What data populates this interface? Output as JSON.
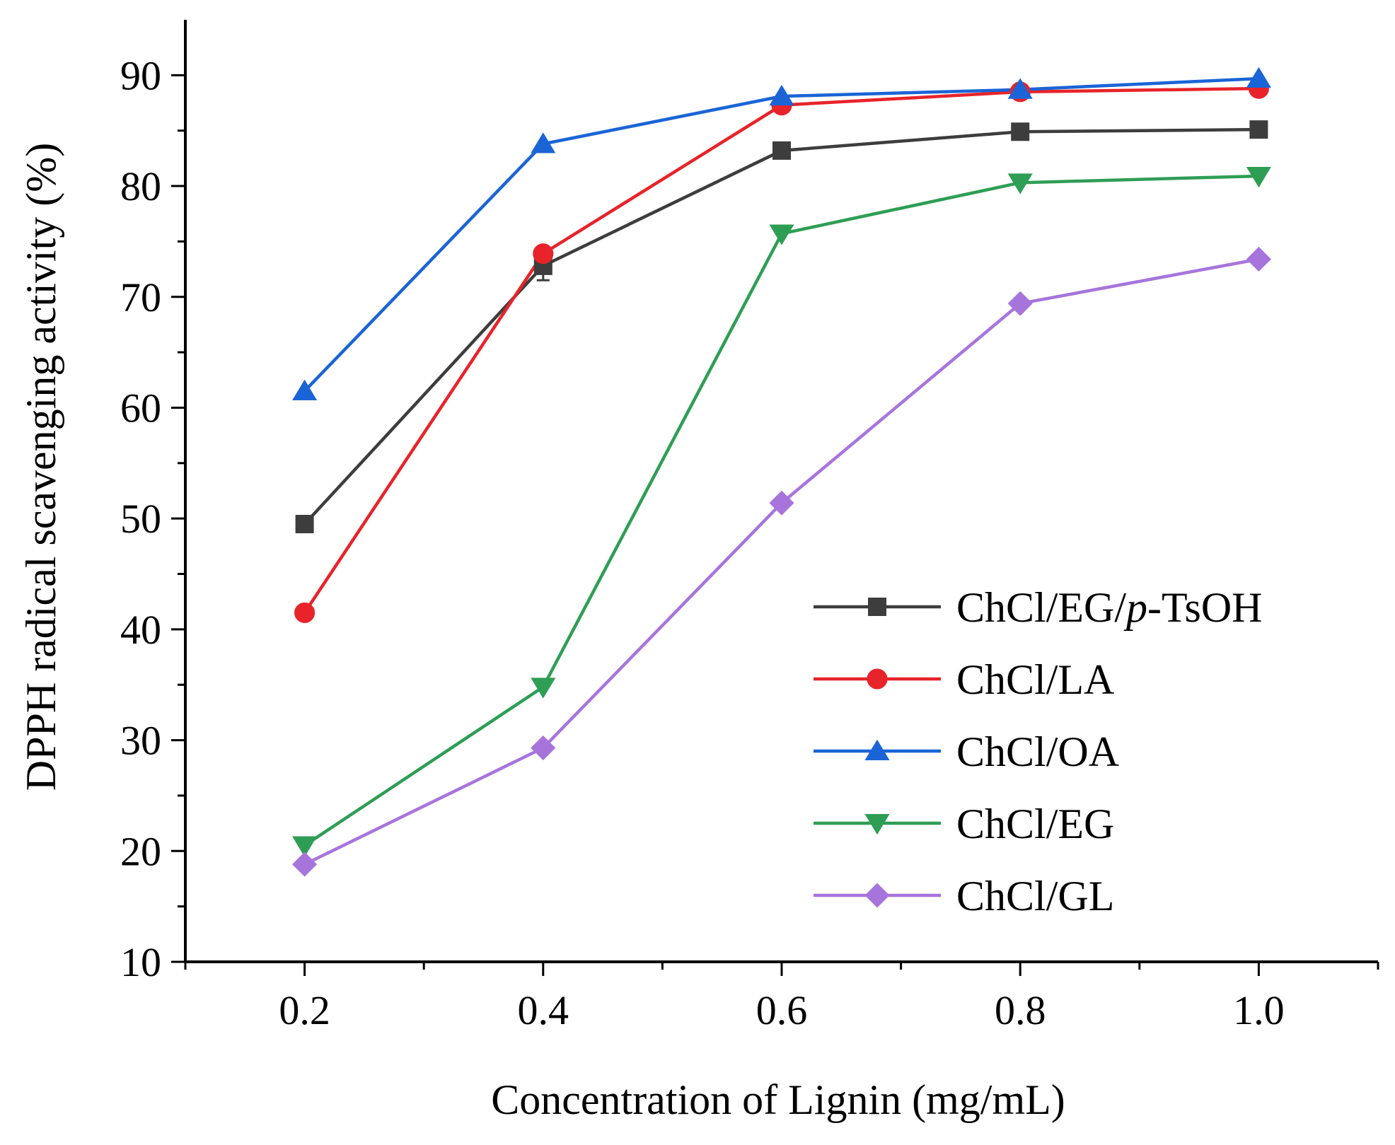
{
  "chart_data": {
    "type": "line",
    "title": "",
    "xlabel": "Concentration of Lignin (mg/mL)",
    "ylabel": "DPPH radical scavenging activity (%)",
    "x": [
      0.2,
      0.4,
      0.6,
      0.8,
      1.0
    ],
    "xlim": [
      0.1,
      1.1
    ],
    "ylim": [
      10,
      95
    ],
    "x_ticks": [
      "0.2",
      "0.4",
      "0.6",
      "0.8",
      "1.0"
    ],
    "y_ticks": [
      "10",
      "20",
      "30",
      "40",
      "50",
      "60",
      "70",
      "80",
      "90"
    ],
    "grid": false,
    "legend_position": "bottom-right",
    "series": [
      {
        "name": "ChCl/EG/p-TsOH",
        "name_prefix": "ChCl/EG/",
        "name_italic": "p",
        "name_suffix": "-TsOH",
        "marker": "square",
        "color": "#3d3d3d",
        "values": [
          49.5,
          72.8,
          83.2,
          84.9,
          85.1
        ],
        "error": [
          0.6,
          1.3,
          0.5,
          0.4,
          0.4
        ]
      },
      {
        "name": "ChCl/LA",
        "marker": "circle",
        "color": "#e8232a",
        "values": [
          41.5,
          73.9,
          87.3,
          88.5,
          88.8
        ]
      },
      {
        "name": "ChCl/OA",
        "marker": "triangle-up",
        "color": "#1a64d6",
        "values": [
          61.5,
          83.8,
          88.1,
          88.7,
          89.7
        ]
      },
      {
        "name": "ChCl/EG",
        "marker": "triangle-down",
        "color": "#2e9e55",
        "values": [
          20.5,
          34.8,
          75.7,
          80.3,
          80.9
        ]
      },
      {
        "name": "ChCl/GL",
        "marker": "diamond",
        "color": "#a774dc",
        "values": [
          18.8,
          29.3,
          51.4,
          69.4,
          73.4
        ]
      }
    ]
  }
}
